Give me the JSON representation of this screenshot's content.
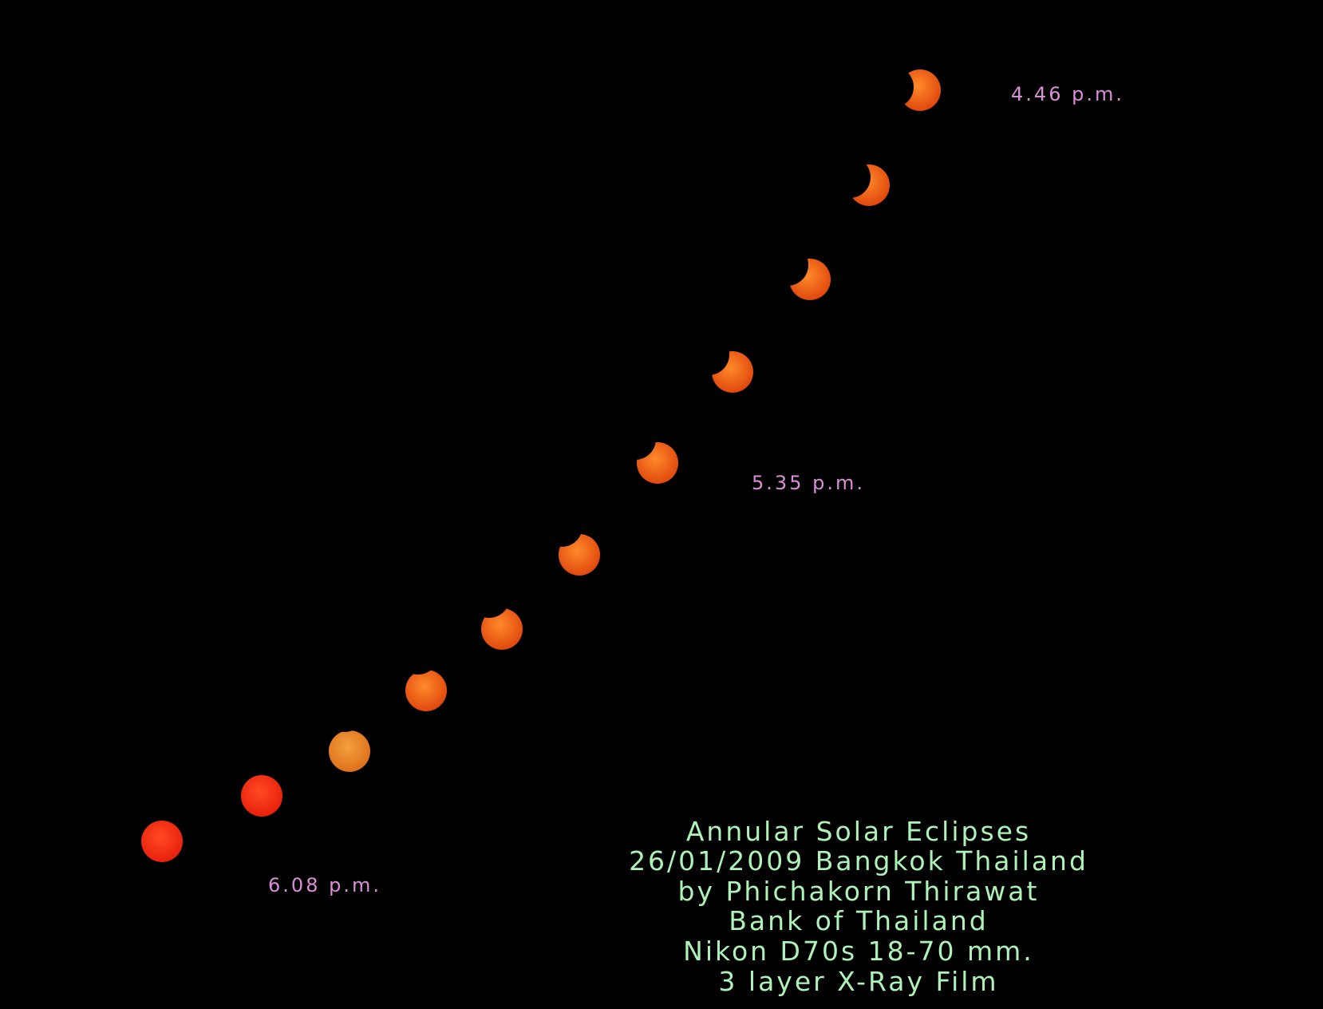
{
  "time_labels": [
    "4.46 p.m.",
    "5.35 p.m.",
    "6.08 p.m."
  ],
  "caption": [
    "Annular Solar Eclipses",
    "26/01/2009 Bangkok Thailand",
    "by Phichakorn Thirawat",
    "Bank of Thailand",
    "Nikon D70s 18-70 mm.",
    "3 layer X-Ray Film"
  ]
}
